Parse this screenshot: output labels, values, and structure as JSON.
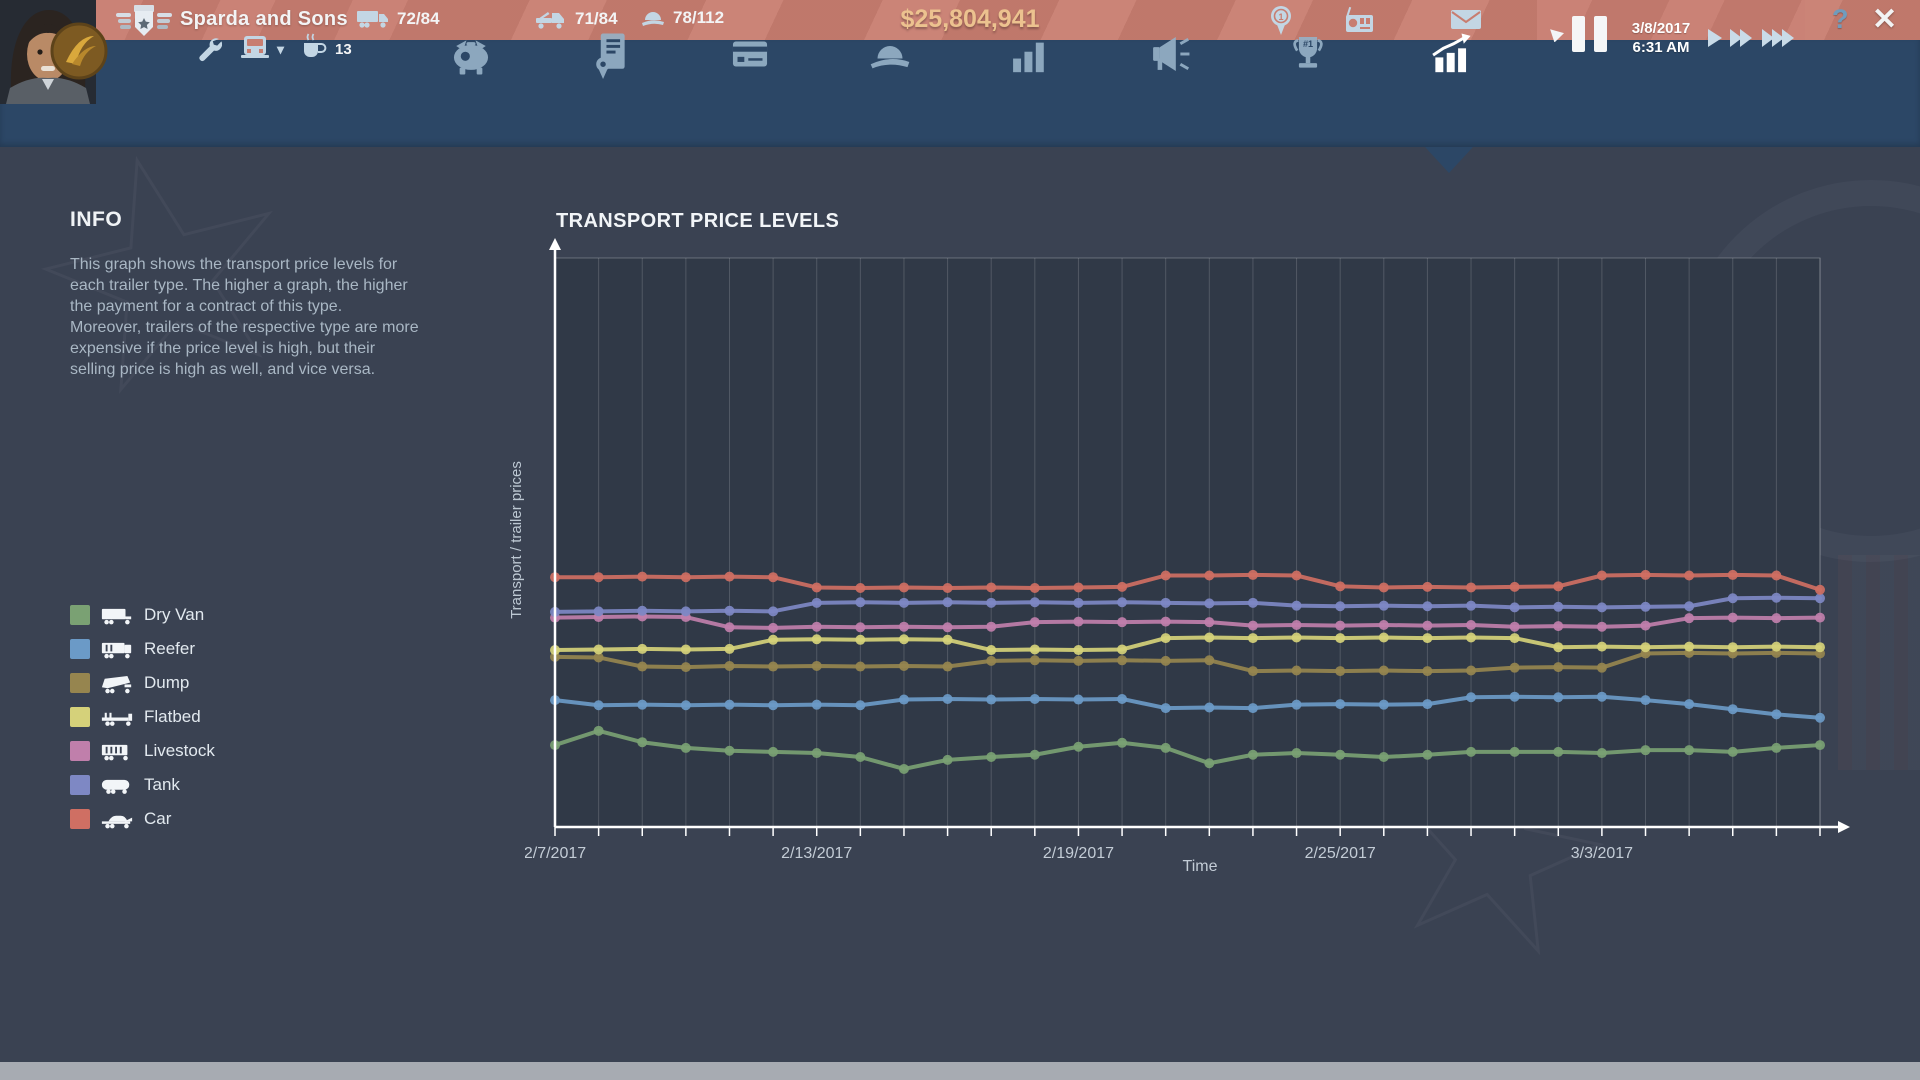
{
  "topbar": {
    "company_name": "Sparda and Sons",
    "trucks": "72/84",
    "trailers": "71/84",
    "drivers": "78/112",
    "money": "$25,804,941",
    "garage_count": "13",
    "date": "3/8/2017",
    "time": "6:31 AM",
    "help_label": "?",
    "close_label": "✕",
    "medal_rank": "1"
  },
  "navbar": {
    "tabs": [
      {
        "icon": "piggy-bank-icon"
      },
      {
        "icon": "contracts-icon"
      },
      {
        "icon": "credit-card-icon"
      },
      {
        "icon": "driver-cap-icon"
      },
      {
        "icon": "bar-chart-icon"
      },
      {
        "icon": "megaphone-icon"
      },
      {
        "icon": "trophy-icon"
      },
      {
        "icon": "price-trend-icon"
      }
    ],
    "active_tab": "price-trend-icon",
    "trophy_text": "#1"
  },
  "info": {
    "title": "INFO",
    "p1": "This graph shows the transport price levels for each trailer type. The higher a graph, the higher the payment for a contract of this type.",
    "p2": "Moreover, trailers of the respective type are more expensive if the price level is high, but their selling price is high as well, and vice versa."
  },
  "chart_data": {
    "type": "line",
    "title": "TRANSPORT PRICE LEVELS",
    "xlabel": "Time",
    "ylabel": "Transport / trailer prices",
    "x_count": 30,
    "x_start": "2/7/2017",
    "x_end": "3/8/2017",
    "ylim": [
      0,
      100
    ],
    "grid": "vertical-daily",
    "legend_position": "left",
    "x_ticks": [
      {
        "day": 0,
        "label": "2/7/2017"
      },
      {
        "day": 6,
        "label": "2/13/2017"
      },
      {
        "day": 12,
        "label": "2/19/2017"
      },
      {
        "day": 18,
        "label": "2/25/2017"
      },
      {
        "day": 24,
        "label": "3/3/2017"
      }
    ],
    "series": [
      {
        "name": "Dry Van",
        "icon": "dry-van",
        "color": "#7aa173",
        "values": [
          14.4,
          16.9,
          14.9,
          13.9,
          13.4,
          13.2,
          13.0,
          12.3,
          10.2,
          11.8,
          12.3,
          12.7,
          14.1,
          14.8,
          13.9,
          11.2,
          12.7,
          13.0,
          12.7,
          12.3,
          12.7,
          13.2,
          13.2,
          13.2,
          13.0,
          13.5,
          13.5,
          13.2,
          13.9,
          14.4
        ]
      },
      {
        "name": "Reefer",
        "icon": "reefer",
        "color": "#6b9ac7",
        "values": [
          22.3,
          21.4,
          21.5,
          21.4,
          21.5,
          21.4,
          21.5,
          21.4,
          22.4,
          22.5,
          22.4,
          22.5,
          22.4,
          22.5,
          20.9,
          21.0,
          20.9,
          21.5,
          21.6,
          21.5,
          21.6,
          22.8,
          22.9,
          22.8,
          22.9,
          22.3,
          21.6,
          20.7,
          19.8,
          19.2
        ]
      },
      {
        "name": "Dump",
        "icon": "dump",
        "color": "#96854f",
        "values": [
          29.9,
          29.8,
          28.2,
          28.1,
          28.3,
          28.2,
          28.3,
          28.2,
          28.3,
          28.2,
          29.2,
          29.3,
          29.2,
          29.3,
          29.2,
          29.3,
          27.4,
          27.5,
          27.4,
          27.5,
          27.4,
          27.5,
          28.0,
          28.1,
          28.0,
          30.5,
          30.6,
          30.5,
          30.6,
          30.5
        ]
      },
      {
        "name": "Flatbed",
        "icon": "flatbed",
        "color": "#d5d17a",
        "values": [
          31.1,
          31.2,
          31.3,
          31.2,
          31.3,
          32.9,
          33.0,
          32.9,
          33.0,
          32.9,
          31.1,
          31.2,
          31.1,
          31.2,
          33.2,
          33.3,
          33.2,
          33.3,
          33.2,
          33.3,
          33.2,
          33.3,
          33.2,
          31.6,
          31.7,
          31.6,
          31.7,
          31.6,
          31.7,
          31.6
        ]
      },
      {
        "name": "Livestock",
        "icon": "livestock",
        "color": "#c07fab",
        "values": [
          36.8,
          36.9,
          37.0,
          36.9,
          35.1,
          35.0,
          35.2,
          35.1,
          35.2,
          35.1,
          35.2,
          36.0,
          36.1,
          36.0,
          36.1,
          36.0,
          35.4,
          35.5,
          35.4,
          35.5,
          35.4,
          35.5,
          35.2,
          35.3,
          35.2,
          35.4,
          36.7,
          36.8,
          36.7,
          36.8
        ]
      },
      {
        "name": "Tank",
        "icon": "tank",
        "color": "#7e88c4",
        "values": [
          37.8,
          37.9,
          38.0,
          37.9,
          38.0,
          37.9,
          39.4,
          39.5,
          39.4,
          39.5,
          39.4,
          39.5,
          39.4,
          39.5,
          39.4,
          39.3,
          39.4,
          38.9,
          38.8,
          38.9,
          38.8,
          38.9,
          38.6,
          38.7,
          38.6,
          38.7,
          38.8,
          40.2,
          40.3,
          40.2
        ]
      },
      {
        "name": "Car",
        "icon": "car",
        "color": "#cf6f63",
        "values": [
          43.9,
          43.9,
          44.0,
          43.9,
          44.0,
          43.9,
          42.1,
          42.0,
          42.1,
          42.0,
          42.1,
          42.0,
          42.1,
          42.2,
          44.2,
          44.2,
          44.3,
          44.2,
          42.3,
          42.1,
          42.2,
          42.1,
          42.2,
          42.3,
          44.2,
          44.3,
          44.2,
          44.3,
          44.2,
          41.7
        ]
      }
    ],
    "colors": {
      "plot_bg": "#303947",
      "page_bg": "#3a4252",
      "grid": "rgba(255,255,255,0.16)",
      "axis": "#ffffff",
      "tick_text": "#c3ccd6"
    }
  }
}
